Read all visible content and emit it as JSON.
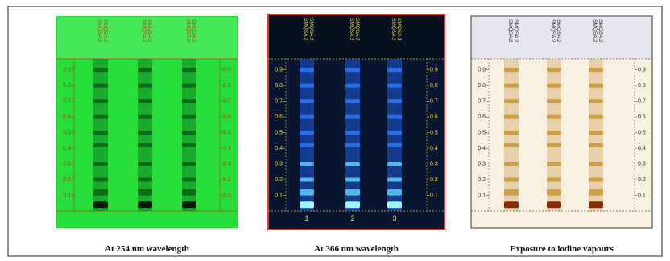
{
  "panels": [
    {
      "caption": "At 254 nm wavelength",
      "lane_labels": [
        [
          "SMQSA 2",
          "SMQSA 2"
        ],
        [
          "SMQSA 2",
          "SMQSA 2"
        ],
        [
          "SMQSA 2",
          "SMQSA 2"
        ]
      ]
    },
    {
      "caption": "At 366 nm wavelength",
      "lane_labels": [
        [
          "SMQSA 2",
          "SMQSA 2"
        ],
        [
          "SMQSA 2",
          "SMQSA 2"
        ],
        [
          "SMQSA 2",
          "SMQSA 2"
        ]
      ],
      "lane_numbers": [
        "1",
        "2",
        "3"
      ]
    },
    {
      "caption": "Exposure to iodine vapours",
      "lane_labels": [
        [
          "SMQSA 2",
          "SMQSA 2"
        ],
        [
          "SMQSA 2",
          "SMQSA 2"
        ],
        [
          "SMQSA 2",
          "SMQSA 2"
        ]
      ]
    }
  ],
  "rf_ticks": [
    0.1,
    0.2,
    0.3,
    0.4,
    0.5,
    0.6,
    0.7,
    0.8,
    0.9
  ]
}
